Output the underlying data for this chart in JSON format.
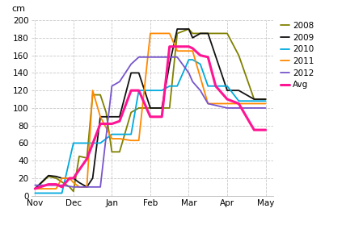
{
  "ylabel": "cm",
  "x_labels": [
    "Nov",
    "Dec",
    "Jan",
    "Feb",
    "Mar",
    "Apr",
    "May"
  ],
  "series": {
    "2008": {
      "color": "#808000",
      "lw": 1.3,
      "x": [
        0.0,
        0.35,
        0.55,
        0.9,
        1.0,
        1.15,
        1.35,
        1.5,
        1.7,
        1.85,
        2.0,
        2.2,
        2.5,
        2.7,
        3.0,
        3.3,
        3.5,
        3.7,
        4.0,
        4.1,
        4.3,
        4.5,
        4.7,
        5.0,
        5.3,
        5.7,
        6.0
      ],
      "y": [
        8,
        22,
        20,
        10,
        5,
        45,
        43,
        115,
        115,
        95,
        50,
        50,
        95,
        100,
        100,
        100,
        100,
        185,
        190,
        185,
        185,
        185,
        185,
        185,
        160,
        110,
        110
      ]
    },
    "2009": {
      "color": "#111111",
      "lw": 1.3,
      "x": [
        0.0,
        0.35,
        0.55,
        0.7,
        0.9,
        1.0,
        1.15,
        1.35,
        1.5,
        1.7,
        1.85,
        2.0,
        2.2,
        2.5,
        2.7,
        3.0,
        3.3,
        3.5,
        3.7,
        4.0,
        4.1,
        4.3,
        4.5,
        5.0,
        5.3,
        5.7,
        6.0
      ],
      "y": [
        8,
        23,
        22,
        20,
        20,
        20,
        15,
        10,
        20,
        90,
        90,
        90,
        90,
        140,
        140,
        100,
        100,
        150,
        190,
        190,
        180,
        185,
        185,
        120,
        120,
        110,
        110
      ]
    },
    "2010": {
      "color": "#00aade",
      "lw": 1.3,
      "x": [
        0.0,
        0.35,
        0.7,
        1.0,
        1.35,
        1.7,
        2.0,
        2.2,
        2.5,
        2.7,
        3.0,
        3.3,
        3.5,
        3.7,
        4.0,
        4.1,
        4.3,
        4.5,
        4.7,
        5.0,
        5.3,
        5.7,
        6.0
      ],
      "y": [
        3,
        3,
        3,
        60,
        60,
        60,
        70,
        70,
        70,
        120,
        120,
        120,
        125,
        125,
        155,
        155,
        150,
        125,
        125,
        125,
        108,
        108,
        108
      ]
    },
    "2011": {
      "color": "#ff8800",
      "lw": 1.3,
      "x": [
        0.0,
        0.35,
        0.55,
        0.7,
        0.9,
        1.0,
        1.15,
        1.35,
        1.5,
        1.7,
        2.0,
        2.2,
        2.5,
        2.7,
        3.0,
        3.3,
        3.5,
        3.7,
        4.0,
        4.1,
        4.5,
        4.7,
        5.0,
        5.3,
        5.7,
        6.0
      ],
      "y": [
        8,
        8,
        8,
        20,
        20,
        15,
        10,
        10,
        120,
        90,
        65,
        65,
        63,
        63,
        185,
        185,
        185,
        165,
        165,
        165,
        105,
        105,
        105,
        105,
        105,
        105
      ]
    },
    "2012": {
      "color": "#7755cc",
      "lw": 1.3,
      "x": [
        0.0,
        0.35,
        0.55,
        0.7,
        1.0,
        1.35,
        1.7,
        2.0,
        2.2,
        2.5,
        2.7,
        3.0,
        3.3,
        3.5,
        3.7,
        4.0,
        4.1,
        4.3,
        4.5,
        4.7,
        5.0,
        5.3,
        5.7,
        6.0
      ],
      "y": [
        12,
        12,
        12,
        12,
        10,
        10,
        10,
        125,
        130,
        150,
        158,
        158,
        158,
        158,
        158,
        140,
        130,
        120,
        105,
        103,
        100,
        100,
        100,
        100
      ]
    },
    "Avg": {
      "color": "#ff1493",
      "lw": 2.2,
      "x": [
        0.0,
        0.35,
        0.55,
        0.7,
        0.9,
        1.0,
        1.35,
        1.7,
        2.0,
        2.2,
        2.5,
        2.7,
        3.0,
        3.3,
        3.5,
        3.7,
        4.0,
        4.1,
        4.3,
        4.5,
        4.7,
        5.0,
        5.3,
        5.7,
        6.0
      ],
      "y": [
        8,
        13,
        13,
        10,
        20,
        20,
        42,
        82,
        82,
        85,
        120,
        120,
        90,
        90,
        170,
        170,
        170,
        168,
        160,
        158,
        125,
        110,
        105,
        75,
        75
      ]
    }
  },
  "ylim": [
    0,
    200
  ],
  "yticks": [
    0,
    20,
    40,
    60,
    80,
    100,
    120,
    140,
    160,
    180,
    200
  ],
  "xlim": [
    -0.1,
    6.2
  ],
  "xticks": [
    0,
    1,
    2,
    3,
    4,
    5,
    6
  ],
  "bg_color": "#ffffff",
  "grid_color": "#c8c8c8"
}
